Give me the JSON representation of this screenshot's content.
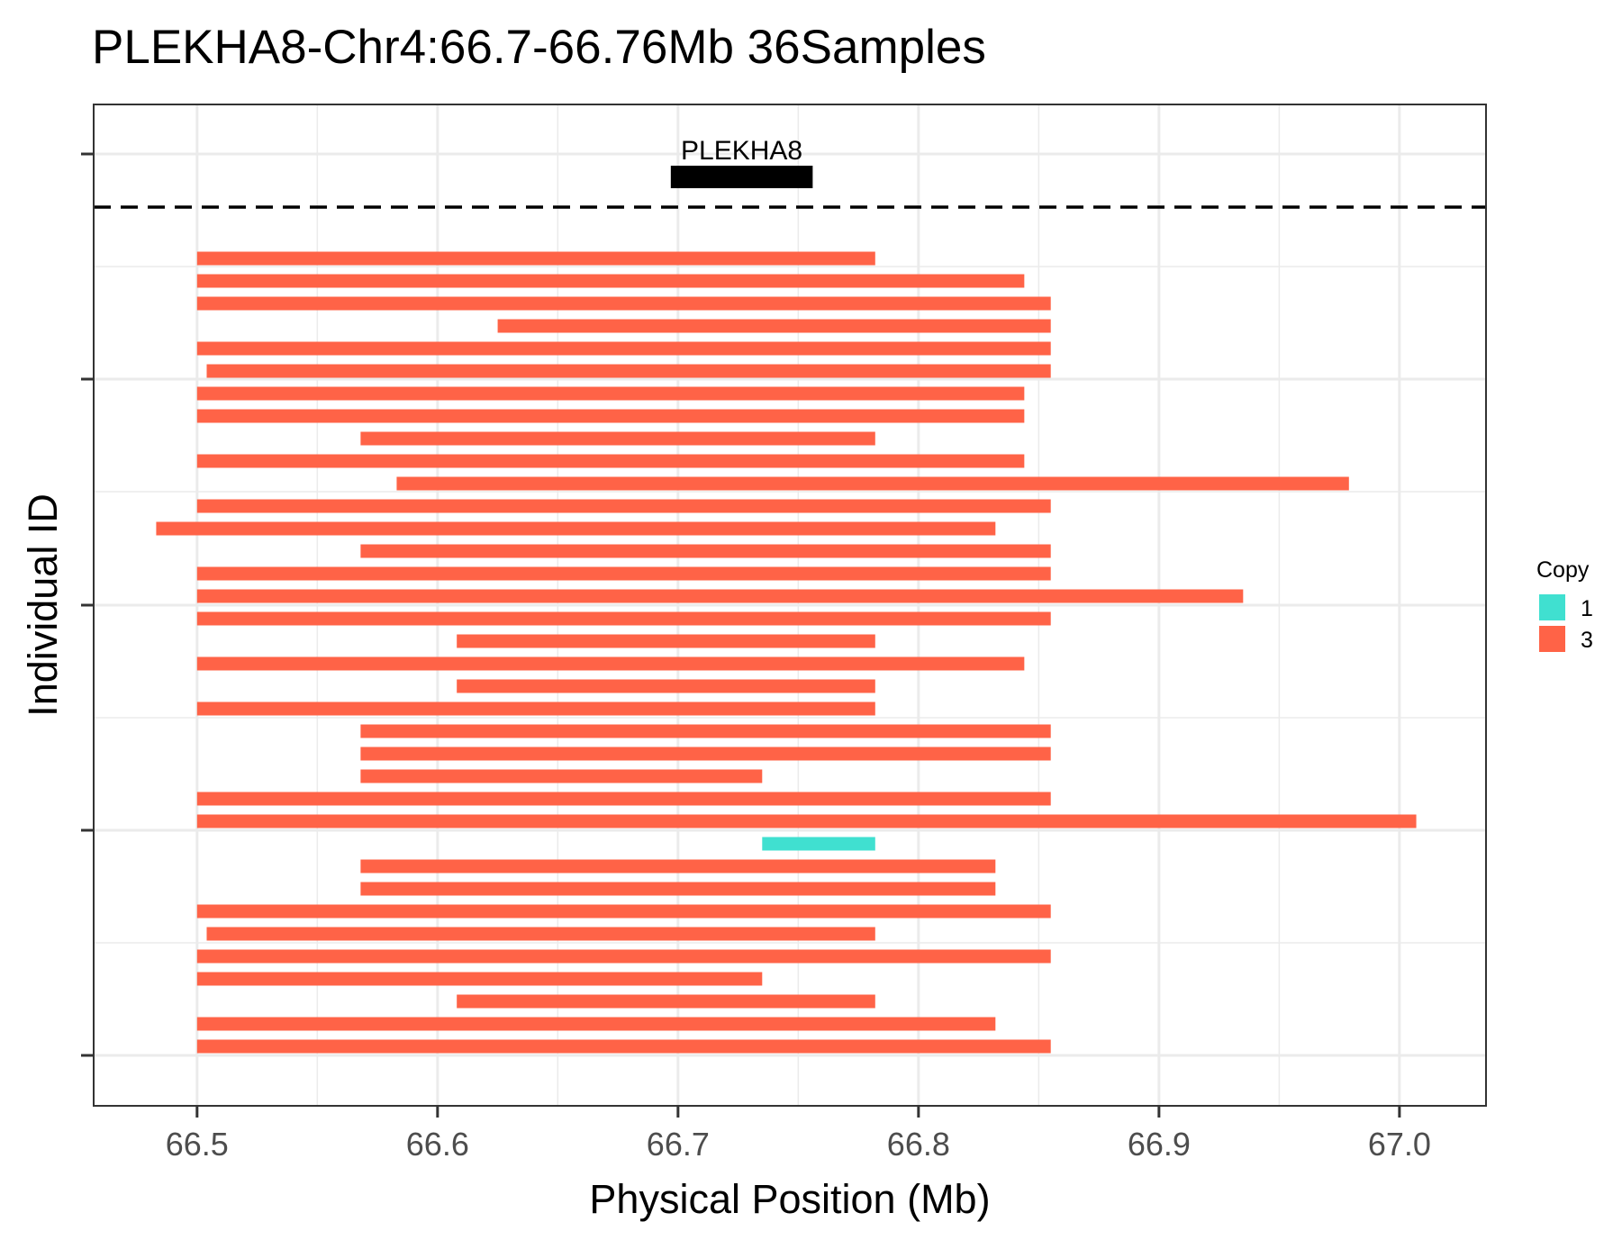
{
  "chart_data": {
    "type": "bar",
    "title": "PLEKHA8-Chr4:66.7-66.76Mb 36Samples",
    "xlabel": "Physical Position (Mb)",
    "ylabel": "Individual ID",
    "xlim": [
      66.457,
      67.036
    ],
    "x_ticks": [
      66.5,
      66.6,
      66.7,
      66.8,
      66.9,
      67.0
    ],
    "x_tick_labels": [
      "66.5",
      "66.6",
      "66.7",
      "66.8",
      "66.9",
      "67.0"
    ],
    "grid": true,
    "legend": {
      "title": "Copy",
      "position": "right",
      "entries": [
        {
          "label": "1",
          "color": "#40E0D0"
        },
        {
          "label": "3",
          "color": "#FF6347"
        }
      ]
    },
    "gene": {
      "name": "PLEKHA8",
      "start": 66.697,
      "end": 66.756,
      "color": "#000000"
    },
    "segments": [
      {
        "start": 66.5,
        "end": 66.782,
        "copy": 3
      },
      {
        "start": 66.5,
        "end": 66.844,
        "copy": 3
      },
      {
        "start": 66.5,
        "end": 66.855,
        "copy": 3
      },
      {
        "start": 66.625,
        "end": 66.855,
        "copy": 3
      },
      {
        "start": 66.5,
        "end": 66.855,
        "copy": 3
      },
      {
        "start": 66.504,
        "end": 66.855,
        "copy": 3
      },
      {
        "start": 66.5,
        "end": 66.844,
        "copy": 3
      },
      {
        "start": 66.5,
        "end": 66.844,
        "copy": 3
      },
      {
        "start": 66.568,
        "end": 66.782,
        "copy": 3
      },
      {
        "start": 66.5,
        "end": 66.844,
        "copy": 3
      },
      {
        "start": 66.583,
        "end": 66.979,
        "copy": 3
      },
      {
        "start": 66.5,
        "end": 66.855,
        "copy": 3
      },
      {
        "start": 66.483,
        "end": 66.832,
        "copy": 3
      },
      {
        "start": 66.568,
        "end": 66.855,
        "copy": 3
      },
      {
        "start": 66.5,
        "end": 66.855,
        "copy": 3
      },
      {
        "start": 66.5,
        "end": 66.935,
        "copy": 3
      },
      {
        "start": 66.5,
        "end": 66.855,
        "copy": 3
      },
      {
        "start": 66.608,
        "end": 66.782,
        "copy": 3
      },
      {
        "start": 66.5,
        "end": 66.844,
        "copy": 3
      },
      {
        "start": 66.608,
        "end": 66.782,
        "copy": 3
      },
      {
        "start": 66.5,
        "end": 66.782,
        "copy": 3
      },
      {
        "start": 66.568,
        "end": 66.855,
        "copy": 3
      },
      {
        "start": 66.568,
        "end": 66.855,
        "copy": 3
      },
      {
        "start": 66.568,
        "end": 66.735,
        "copy": 3
      },
      {
        "start": 66.5,
        "end": 66.855,
        "copy": 3
      },
      {
        "start": 66.5,
        "end": 67.007,
        "copy": 3
      },
      {
        "start": 66.735,
        "end": 66.782,
        "copy": 1
      },
      {
        "start": 66.568,
        "end": 66.832,
        "copy": 3
      },
      {
        "start": 66.568,
        "end": 66.832,
        "copy": 3
      },
      {
        "start": 66.5,
        "end": 66.855,
        "copy": 3
      },
      {
        "start": 66.504,
        "end": 66.782,
        "copy": 3
      },
      {
        "start": 66.5,
        "end": 66.855,
        "copy": 3
      },
      {
        "start": 66.5,
        "end": 66.735,
        "copy": 3
      },
      {
        "start": 66.608,
        "end": 66.782,
        "copy": 3
      },
      {
        "start": 66.5,
        "end": 66.832,
        "copy": 3
      },
      {
        "start": 66.5,
        "end": 66.855,
        "copy": 3
      }
    ]
  }
}
